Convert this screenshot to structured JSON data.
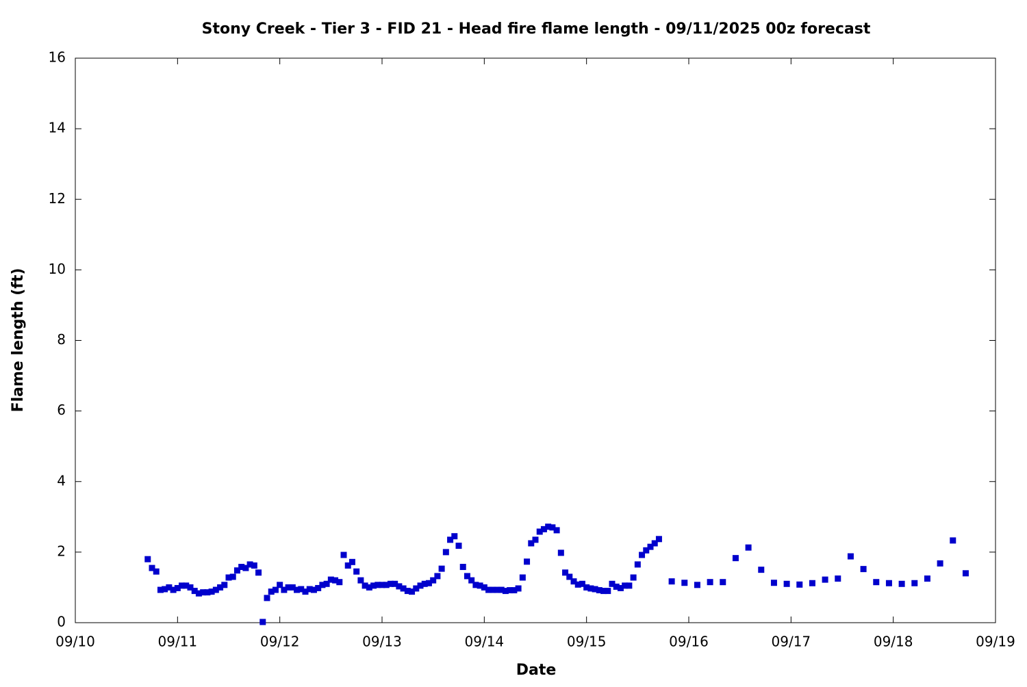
{
  "chart_data": {
    "type": "scatter",
    "title": "Stony Creek - Tier 3 - FID 21 - Head fire flame length - 09/11/2025 00z forecast",
    "x_label": "Date",
    "y_label": "Flame length (ft)",
    "color": "#0000cc",
    "x": [
      0.7083,
      0.75,
      0.7917,
      0.8333,
      0.875,
      0.9167,
      0.9583,
      1,
      1.0417,
      1.0833,
      1.125,
      1.1667,
      1.2083,
      1.25,
      1.2917,
      1.3333,
      1.375,
      1.4167,
      1.4583,
      1.5,
      1.5417,
      1.5833,
      1.625,
      1.6667,
      1.7083,
      1.75,
      1.7917,
      1.8333,
      1.875,
      1.9167,
      1.9583,
      2,
      2.0417,
      2.0833,
      2.125,
      2.1667,
      2.2083,
      2.25,
      2.2917,
      2.3333,
      2.375,
      2.4167,
      2.4583,
      2.5,
      2.5417,
      2.5833,
      2.625,
      2.6667,
      2.7083,
      2.75,
      2.7917,
      2.8333,
      2.875,
      2.9167,
      2.9583,
      3,
      3.0417,
      3.0833,
      3.125,
      3.1667,
      3.2083,
      3.25,
      3.2917,
      3.3333,
      3.375,
      3.4167,
      3.4583,
      3.5,
      3.5417,
      3.5833,
      3.625,
      3.6667,
      3.7083,
      3.75,
      3.7917,
      3.8333,
      3.875,
      3.9167,
      3.9583,
      4,
      4.0417,
      4.0833,
      4.125,
      4.1667,
      4.2083,
      4.25,
      4.2917,
      4.3333,
      4.375,
      4.4167,
      4.4583,
      4.5,
      4.5417,
      4.5833,
      4.625,
      4.6667,
      4.7083,
      4.75,
      4.7917,
      4.8333,
      4.875,
      4.9167,
      4.9583,
      5,
      5.0417,
      5.0833,
      5.125,
      5.1667,
      5.2083,
      5.25,
      5.2917,
      5.3333,
      5.375,
      5.4167,
      5.4583,
      5.5,
      5.5417,
      5.5833,
      5.625,
      5.6667,
      5.7083,
      5.8333,
      5.9583,
      6.0833,
      6.2083,
      6.3333,
      6.4583,
      6.5833,
      6.7083,
      6.8333,
      6.9583,
      7.0833,
      7.2083,
      7.3333,
      7.4583,
      7.5833,
      7.7083,
      7.8333,
      7.9583,
      8.0833,
      8.2083,
      8.3333,
      8.4583,
      8.5833,
      8.7083
    ],
    "values": [
      1.8,
      1.55,
      1.45,
      0.93,
      0.95,
      1.0,
      0.93,
      0.98,
      1.05,
      1.05,
      1.0,
      0.9,
      0.83,
      0.86,
      0.86,
      0.88,
      0.93,
      1.0,
      1.07,
      1.28,
      1.3,
      1.48,
      1.58,
      1.55,
      1.65,
      1.62,
      1.42,
      0.02,
      0.7,
      0.88,
      0.93,
      1.07,
      0.93,
      1.0,
      1.0,
      0.93,
      0.95,
      0.88,
      0.95,
      0.93,
      0.98,
      1.07,
      1.1,
      1.22,
      1.2,
      1.15,
      1.92,
      1.62,
      1.72,
      1.45,
      1.2,
      1.05,
      1.0,
      1.05,
      1.07,
      1.07,
      1.07,
      1.1,
      1.1,
      1.03,
      0.97,
      0.9,
      0.88,
      0.97,
      1.05,
      1.1,
      1.12,
      1.2,
      1.32,
      1.53,
      2.0,
      2.35,
      2.45,
      2.18,
      1.58,
      1.32,
      1.2,
      1.07,
      1.05,
      1.0,
      0.93,
      0.93,
      0.93,
      0.93,
      0.9,
      0.92,
      0.92,
      0.97,
      1.28,
      1.73,
      2.25,
      2.35,
      2.58,
      2.65,
      2.72,
      2.7,
      2.62,
      1.98,
      1.42,
      1.3,
      1.17,
      1.08,
      1.1,
      1.0,
      0.97,
      0.95,
      0.92,
      0.9,
      0.9,
      1.1,
      1.02,
      0.98,
      1.05,
      1.05,
      1.28,
      1.65,
      1.92,
      2.05,
      2.15,
      2.25,
      2.37,
      1.17,
      1.13,
      1.07,
      1.15,
      1.15,
      1.83,
      2.13,
      1.5,
      1.13,
      1.1,
      1.08,
      1.12,
      1.22,
      1.25,
      1.88,
      1.52,
      1.15,
      1.12,
      1.1,
      1.12,
      1.25,
      1.68,
      2.33,
      1.4
    ],
    "xlim": [
      0,
      9
    ],
    "xticks": [
      {
        "value": 0,
        "label": "09/10"
      },
      {
        "value": 1,
        "label": "09/11"
      },
      {
        "value": 2,
        "label": "09/12"
      },
      {
        "value": 3,
        "label": "09/13"
      },
      {
        "value": 4,
        "label": "09/14"
      },
      {
        "value": 5,
        "label": "09/15"
      },
      {
        "value": 6,
        "label": "09/16"
      },
      {
        "value": 7,
        "label": "09/17"
      },
      {
        "value": 8,
        "label": "09/18"
      },
      {
        "value": 9,
        "label": "09/19"
      }
    ],
    "ylim": [
      0,
      16
    ],
    "yticks": [
      0,
      2,
      4,
      6,
      8,
      10,
      12,
      14,
      16
    ],
    "grid": false
  }
}
